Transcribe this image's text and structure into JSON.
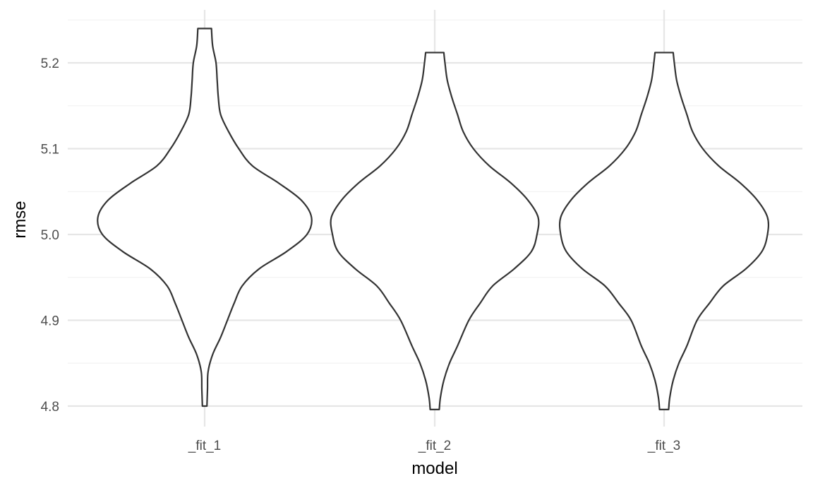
{
  "chart_data": {
    "type": "violin",
    "xlabel": "model",
    "ylabel": "rmse",
    "categories": [
      "_fit_1",
      "_fit_2",
      "_fit_3"
    ],
    "ylim": [
      4.785,
      5.265
    ],
    "yticks": [
      4.8,
      4.9,
      5.0,
      5.1,
      5.2
    ],
    "ytick_labels": [
      "4.8",
      "4.9",
      "5.0",
      "5.1",
      "5.2"
    ],
    "grid": true,
    "series": [
      {
        "category": "_fit_1",
        "min": 4.8,
        "max": 5.24,
        "profile": [
          [
            4.8,
            0.02
          ],
          [
            4.82,
            0.025
          ],
          [
            4.84,
            0.03
          ],
          [
            4.86,
            0.07
          ],
          [
            4.88,
            0.14
          ],
          [
            4.9,
            0.2
          ],
          [
            4.92,
            0.26
          ],
          [
            4.94,
            0.33
          ],
          [
            4.96,
            0.48
          ],
          [
            4.98,
            0.72
          ],
          [
            5.0,
            0.9
          ],
          [
            5.02,
            0.94
          ],
          [
            5.04,
            0.85
          ],
          [
            5.06,
            0.65
          ],
          [
            5.08,
            0.42
          ],
          [
            5.1,
            0.3
          ],
          [
            5.12,
            0.21
          ],
          [
            5.14,
            0.14
          ],
          [
            5.16,
            0.12
          ],
          [
            5.18,
            0.11
          ],
          [
            5.2,
            0.1
          ],
          [
            5.22,
            0.07
          ],
          [
            5.24,
            0.06
          ]
        ]
      },
      {
        "category": "_fit_2",
        "min": 4.796,
        "max": 5.212,
        "profile": [
          [
            4.796,
            0.04
          ],
          [
            4.81,
            0.05
          ],
          [
            4.83,
            0.08
          ],
          [
            4.85,
            0.13
          ],
          [
            4.87,
            0.2
          ],
          [
            4.9,
            0.3
          ],
          [
            4.92,
            0.4
          ],
          [
            4.94,
            0.51
          ],
          [
            4.96,
            0.7
          ],
          [
            4.98,
            0.85
          ],
          [
            5.0,
            0.9
          ],
          [
            5.02,
            0.91
          ],
          [
            5.04,
            0.82
          ],
          [
            5.06,
            0.67
          ],
          [
            5.08,
            0.48
          ],
          [
            5.1,
            0.34
          ],
          [
            5.12,
            0.25
          ],
          [
            5.14,
            0.2
          ],
          [
            5.16,
            0.15
          ],
          [
            5.18,
            0.11
          ],
          [
            5.2,
            0.09
          ],
          [
            5.212,
            0.08
          ]
        ]
      },
      {
        "category": "_fit_3",
        "min": 4.796,
        "max": 5.212,
        "profile": [
          [
            4.796,
            0.04
          ],
          [
            4.81,
            0.05
          ],
          [
            4.83,
            0.08
          ],
          [
            4.85,
            0.13
          ],
          [
            4.87,
            0.2
          ],
          [
            4.9,
            0.29
          ],
          [
            4.92,
            0.4
          ],
          [
            4.94,
            0.52
          ],
          [
            4.96,
            0.72
          ],
          [
            4.98,
            0.86
          ],
          [
            5.0,
            0.91
          ],
          [
            5.02,
            0.91
          ],
          [
            5.04,
            0.82
          ],
          [
            5.06,
            0.67
          ],
          [
            5.08,
            0.48
          ],
          [
            5.1,
            0.34
          ],
          [
            5.12,
            0.25
          ],
          [
            5.14,
            0.2
          ],
          [
            5.16,
            0.15
          ],
          [
            5.18,
            0.11
          ],
          [
            5.2,
            0.09
          ],
          [
            5.212,
            0.08
          ]
        ]
      }
    ]
  }
}
